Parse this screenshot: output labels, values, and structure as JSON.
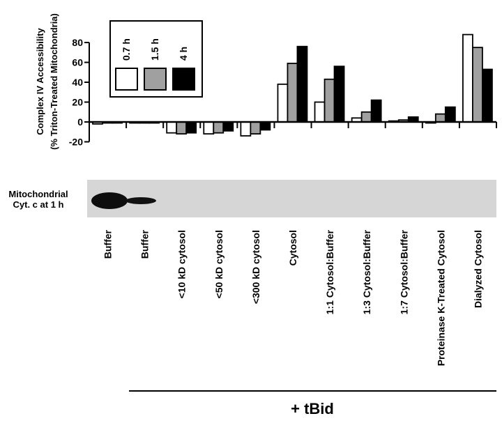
{
  "chart_data": {
    "type": "bar",
    "ylabel_lines": [
      "Complex IV Accessibility",
      "(% Triton-Treated Mitochondria)"
    ],
    "ylim": [
      -20,
      80
    ],
    "yticks": [
      "80",
      "60",
      "40",
      "20",
      "0",
      "-20"
    ],
    "ytick_values": [
      80,
      60,
      40,
      20,
      0,
      -20
    ],
    "categories": [
      "Buffer",
      "Buffer",
      "<10 kD cytosol",
      "<50 kD cytosol",
      "<300 kD cytosol",
      "Cytosol",
      "1:1 Cytosol:Buffer",
      "1:3 Cytosol:Buffer",
      "1:7 Cytosol:Buffer",
      "Proteinase K-Treated Cytosol",
      "Dialyzed Cytosol"
    ],
    "series": [
      {
        "name": "0.7 h",
        "color": "#ffffff",
        "values": [
          -2,
          -1,
          -11,
          -12,
          -14,
          38,
          20,
          4,
          1,
          -1,
          88
        ]
      },
      {
        "name": "1.5 h",
        "color": "#a0a0a0",
        "values": [
          -1,
          -1,
          -12,
          -11,
          -12,
          59,
          43,
          10,
          2,
          8,
          75
        ]
      },
      {
        "name": "4 h",
        "color": "#000000",
        "values": [
          -1,
          -1,
          -11,
          -9,
          -8,
          76,
          56,
          22,
          5,
          15,
          53
        ]
      }
    ],
    "legend_placement": "top-left",
    "grid": false,
    "blot_label_lines": [
      "Mitochondrial",
      "Cyt. c at 1 h"
    ],
    "blot_band_lanes": [
      0,
      1
    ],
    "group_label": "+ tBid"
  }
}
